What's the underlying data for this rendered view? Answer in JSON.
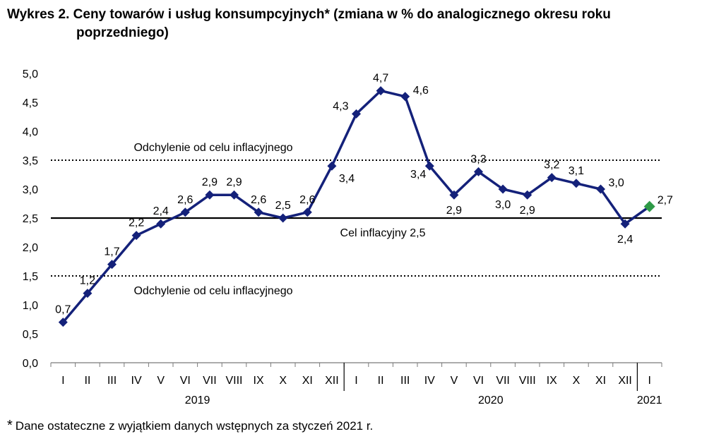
{
  "header": {
    "title_line1": "Wykres 2. Ceny towarów i usług konsumpcyjnych* (zmiana w % do analogicznego okresu roku",
    "title_line2": "poprzedniego)"
  },
  "footnote": {
    "star": "*",
    "text": "Dane ostateczne z wyjątkiem danych wstępnych za styczeń 2021 r."
  },
  "chart_data": {
    "type": "line",
    "categories": [
      "I",
      "II",
      "III",
      "IV",
      "V",
      "VI",
      "VII",
      "VIII",
      "IX",
      "X",
      "XI",
      "XII",
      "I",
      "II",
      "III",
      "IV",
      "V",
      "VI",
      "VII",
      "VIII",
      "IX",
      "X",
      "XI",
      "XII",
      "I"
    ],
    "year_labels": [
      {
        "label": "2019",
        "from": 0,
        "to": 11
      },
      {
        "label": "2020",
        "from": 12,
        "to": 23
      },
      {
        "label": "2021",
        "from": 24,
        "to": 24
      }
    ],
    "values": [
      0.7,
      1.2,
      1.7,
      2.2,
      2.4,
      2.6,
      2.9,
      2.9,
      2.6,
      2.5,
      2.6,
      3.4,
      4.3,
      4.7,
      4.6,
      3.4,
      2.9,
      3.3,
      3.0,
      2.9,
      3.2,
      3.1,
      3.0,
      2.4,
      2.7
    ],
    "value_labels": [
      "0,7",
      "1,2",
      "1,7",
      "2,2",
      "2,4",
      "2,6",
      "2,9",
      "2,9",
      "2,6",
      "2,5",
      "2,6",
      "3,4",
      "4,3",
      "4,7",
      "4,6",
      "3,4",
      "2,9",
      "3,3",
      "3,0",
      "2,9",
      "3,2",
      "3,1",
      "3,0",
      "2,4",
      "2,7"
    ],
    "label_positions": [
      "above",
      "above",
      "above",
      "above",
      "above",
      "above",
      "above",
      "above",
      "above",
      "above",
      "above",
      "right",
      "left",
      "above",
      "right",
      "left",
      "below",
      "above",
      "below",
      "below",
      "above",
      "above",
      "right",
      "below",
      "right"
    ],
    "preliminary_index": 24,
    "ylim": [
      0,
      5
    ],
    "yticks": [
      0,
      0.5,
      1,
      1.5,
      2,
      2.5,
      3,
      3.5,
      4,
      4.5,
      5
    ],
    "ytick_labels": [
      "0,0",
      "0,5",
      "1,0",
      "1,5",
      "2,0",
      "2,5",
      "3,0",
      "3,5",
      "4,0",
      "4,5",
      "5,0"
    ],
    "reference_lines": [
      {
        "value": 3.5,
        "style": "dotted",
        "label": "Odchylenie od celu inflacyjnego",
        "label_position": "above"
      },
      {
        "value": 2.5,
        "style": "solid",
        "label": "Cel inflacyjny 2,5",
        "label_position": "below"
      },
      {
        "value": 1.5,
        "style": "dotted",
        "label": "Odchylenie od celu inflacyjnego",
        "label_position": "below"
      }
    ],
    "grid": false,
    "colors": {
      "series": "#14217a",
      "preliminary": "#2e9a47",
      "reference": "#000000",
      "axis": "#7a7a7a"
    }
  }
}
